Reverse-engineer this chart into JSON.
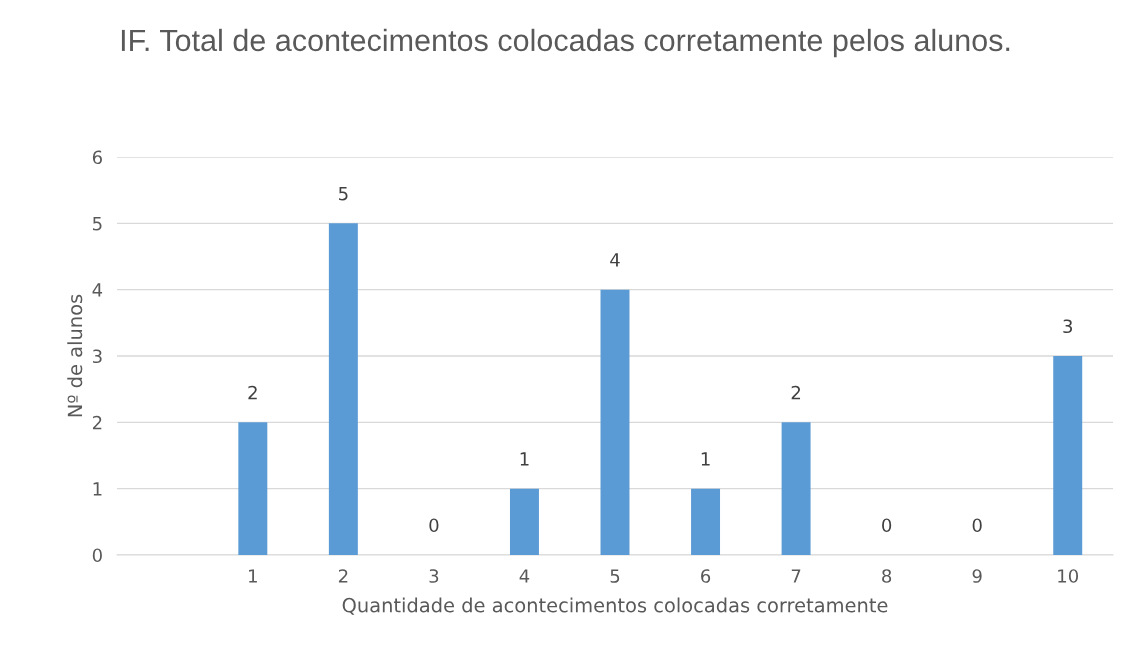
{
  "chart_data": {
    "type": "bar",
    "title": "IF. Total de acontecimentos colocadas corretamente pelos alunos.",
    "xlabel": "Quantidade de acontecimentos colocadas corretamente",
    "ylabel": "Nº de alunos",
    "categories": [
      null,
      "1",
      "2",
      "3",
      "4",
      "5",
      "6",
      "7",
      "8",
      "9",
      "10"
    ],
    "values": [
      null,
      2,
      5,
      0,
      1,
      4,
      1,
      2,
      0,
      0,
      3
    ],
    "color": "#5b9bd5",
    "ylim": [
      0,
      6
    ],
    "yticks": [
      0,
      1,
      2,
      3,
      4,
      5,
      6
    ],
    "grid": "y",
    "data_labels": true,
    "legend": false
  }
}
